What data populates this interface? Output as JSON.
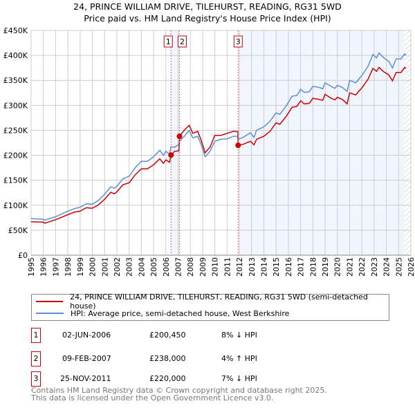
{
  "title": "24, PRINCE WILLIAM DRIVE, TILEHURST, READING, RG31 5WD",
  "subtitle": "Price paid vs. HM Land Registry's House Price Index (HPI)",
  "chart_data": {
    "type": "line",
    "title": "24, PRINCE WILLIAM DRIVE, TILEHURST, READING, RG31 5WD",
    "subtitle": "Price paid vs. HM Land Registry's House Price Index (HPI)",
    "xlim": [
      1995,
      2026
    ],
    "ylim": [
      0,
      450000
    ],
    "grid": true,
    "x_ticks": [
      "1995",
      "1996",
      "1997",
      "1998",
      "1999",
      "2000",
      "2001",
      "2002",
      "2003",
      "2004",
      "2005",
      "2006",
      "2007",
      "2008",
      "2009",
      "2010",
      "2011",
      "2012",
      "2013",
      "2014",
      "2015",
      "2016",
      "2017",
      "2018",
      "2019",
      "2020",
      "2021",
      "2022",
      "2023",
      "2024",
      "2025",
      "2026"
    ],
    "y_ticks": [
      "£0",
      "£50K",
      "£100K",
      "£150K",
      "£200K",
      "£250K",
      "£300K",
      "£350K",
      "£400K",
      "£450K"
    ],
    "x": [
      1995,
      1996,
      1996.1,
      1997,
      1998,
      1998.5,
      1999,
      1999.5,
      2000,
      2000.5,
      2001,
      2001.5,
      2001.8,
      2002,
      2002.5,
      2003,
      2003.5,
      2004,
      2004.5,
      2005,
      2005.5,
      2005.8,
      2006,
      2006.3,
      2006.42,
      2006.7,
      2007.08,
      2007.11,
      2007.5,
      2007.9,
      2008.2,
      2008.6,
      2008.9,
      2009.2,
      2009.6,
      2010,
      2010.5,
      2011,
      2011.5,
      2011.88,
      2011.9,
      2012.3,
      2012.9,
      2013.2,
      2013.4,
      2014,
      2014.5,
      2015,
      2015.3,
      2015.8,
      2016.3,
      2016.7,
      2017,
      2017.3,
      2017.7,
      2018,
      2018.5,
      2018.8,
      2019,
      2019.5,
      2019.8,
      2020,
      2020.4,
      2020.8,
      2021,
      2021.5,
      2022,
      2022.5,
      2022.9,
      2023.2,
      2023.4,
      2023.8,
      2024.2,
      2024.5,
      2024.8,
      2025.2,
      2025.5,
      2025.6
    ],
    "series": [
      {
        "name": "24, PRINCE WILLIAM DRIVE, TILEHURST, READING, RG31 5WD (semi-detached house)",
        "color": "#cc0000",
        "values": [
          67,
          66,
          64,
          71,
          81,
          86,
          88,
          95,
          94,
          101,
          112,
          126,
          123,
          127,
          141,
          145,
          161,
          173,
          173,
          181,
          193,
          184,
          191,
          186,
          200.45,
          208,
          209,
          238,
          250,
          260,
          244,
          248,
          229,
          205,
          216,
          240,
          240,
          244,
          248,
          247,
          220,
          222,
          228,
          221,
          232,
          238,
          248,
          265,
          262,
          277,
          296,
          298,
          309,
          303,
          304,
          314,
          312,
          310,
          322,
          314,
          311,
          316,
          312,
          303,
          325,
          321,
          335,
          352,
          374,
          368,
          376,
          367,
          361,
          349,
          366,
          366,
          376,
          374
        ]
      },
      {
        "name": "HPI: Average price, semi-detached house, West Berkshire",
        "color": "#5b8fd4",
        "values": [
          73,
          72,
          70,
          77,
          88,
          93,
          96,
          103,
          102,
          110,
          122,
          137,
          134,
          138,
          153,
          158,
          175,
          188,
          188,
          197,
          210,
          200,
          208,
          202,
          217,
          216,
          222,
          228,
          238,
          250,
          235,
          238,
          220,
          197,
          208,
          228,
          232,
          233,
          238,
          238,
          232,
          236,
          245,
          236,
          250,
          257,
          268,
          285,
          282,
          298,
          318,
          320,
          332,
          326,
          327,
          338,
          336,
          333,
          345,
          338,
          334,
          340,
          336,
          328,
          350,
          345,
          360,
          378,
          402,
          395,
          405,
          395,
          388,
          375,
          393,
          393,
          403,
          400
        ]
      }
    ],
    "value_unit": "thousand GBP",
    "sales": [
      {
        "id": "1",
        "x": 2006.42,
        "price": 200450
      },
      {
        "id": "2",
        "x": 2007.11,
        "price": 238000
      },
      {
        "id": "3",
        "x": 2011.9,
        "price": 220000
      }
    ],
    "shaded_ranges": [
      [
        2006.42,
        2007.11
      ],
      [
        2011.9,
        2025.5
      ]
    ],
    "hatched_from": 2025.5
  },
  "legend": {
    "property": "24, PRINCE WILLIAM DRIVE, TILEHURST, READING, RG31 5WD (semi-detached house)",
    "hpi": "HPI: Average price, semi-detached house, West Berkshire",
    "property_color": "#cc0000",
    "hpi_color": "#5b8fd4"
  },
  "transactions": [
    {
      "id": "1",
      "date": "02-JUN-2006",
      "price": "£200,450",
      "hpi": "8% ↓ HPI"
    },
    {
      "id": "2",
      "date": "09-FEB-2007",
      "price": "£238,000",
      "hpi": "4% ↑ HPI"
    },
    {
      "id": "3",
      "date": "25-NOV-2011",
      "price": "£220,000",
      "hpi": "7% ↓ HPI"
    }
  ],
  "footer": {
    "line1": "Contains HM Land Registry data © Crown copyright and database right 2025.",
    "line2": "This data is licensed under the Open Government Licence v3.0."
  }
}
